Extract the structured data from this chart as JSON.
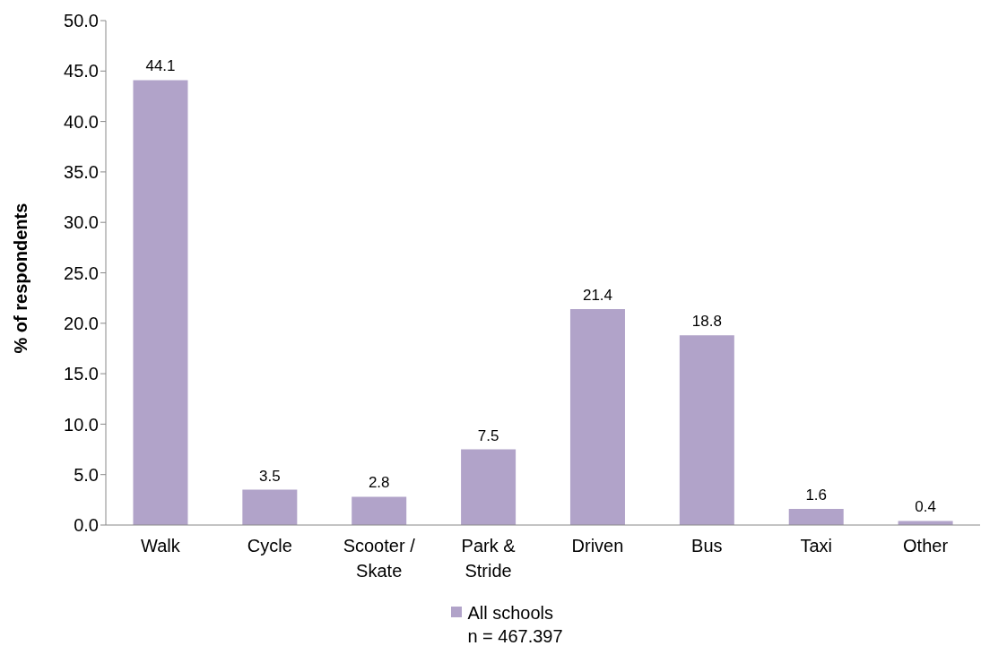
{
  "chart_data": {
    "type": "bar",
    "ylabel": "% of respondents",
    "categories": [
      "Walk",
      "Cycle",
      "Scooter / Skate",
      "Park & Stride",
      "Driven",
      "Bus",
      "Taxi",
      "Other"
    ],
    "series": [
      {
        "name": "All schools\nn = 467.397",
        "color": "#b1a3c9",
        "values": [
          44.1,
          3.5,
          2.8,
          7.5,
          21.4,
          18.8,
          1.6,
          0.4
        ]
      }
    ],
    "ylim": [
      0,
      50
    ],
    "yticks": [
      {
        "value": 0,
        "label": "0.0"
      },
      {
        "value": 5,
        "label": "5.0"
      },
      {
        "value": 10,
        "label": "10.0"
      },
      {
        "value": 15,
        "label": "15.0"
      },
      {
        "value": 20,
        "label": "20.0"
      },
      {
        "value": 25,
        "label": "25.0"
      },
      {
        "value": 30,
        "label": "30.0"
      },
      {
        "value": 35,
        "label": "35.0"
      },
      {
        "value": 40,
        "label": "40.0"
      },
      {
        "value": 45,
        "label": "45.0"
      },
      {
        "value": 50,
        "label": "50.0"
      }
    ],
    "data_labels": true,
    "grid": false,
    "legend": "bottom"
  }
}
